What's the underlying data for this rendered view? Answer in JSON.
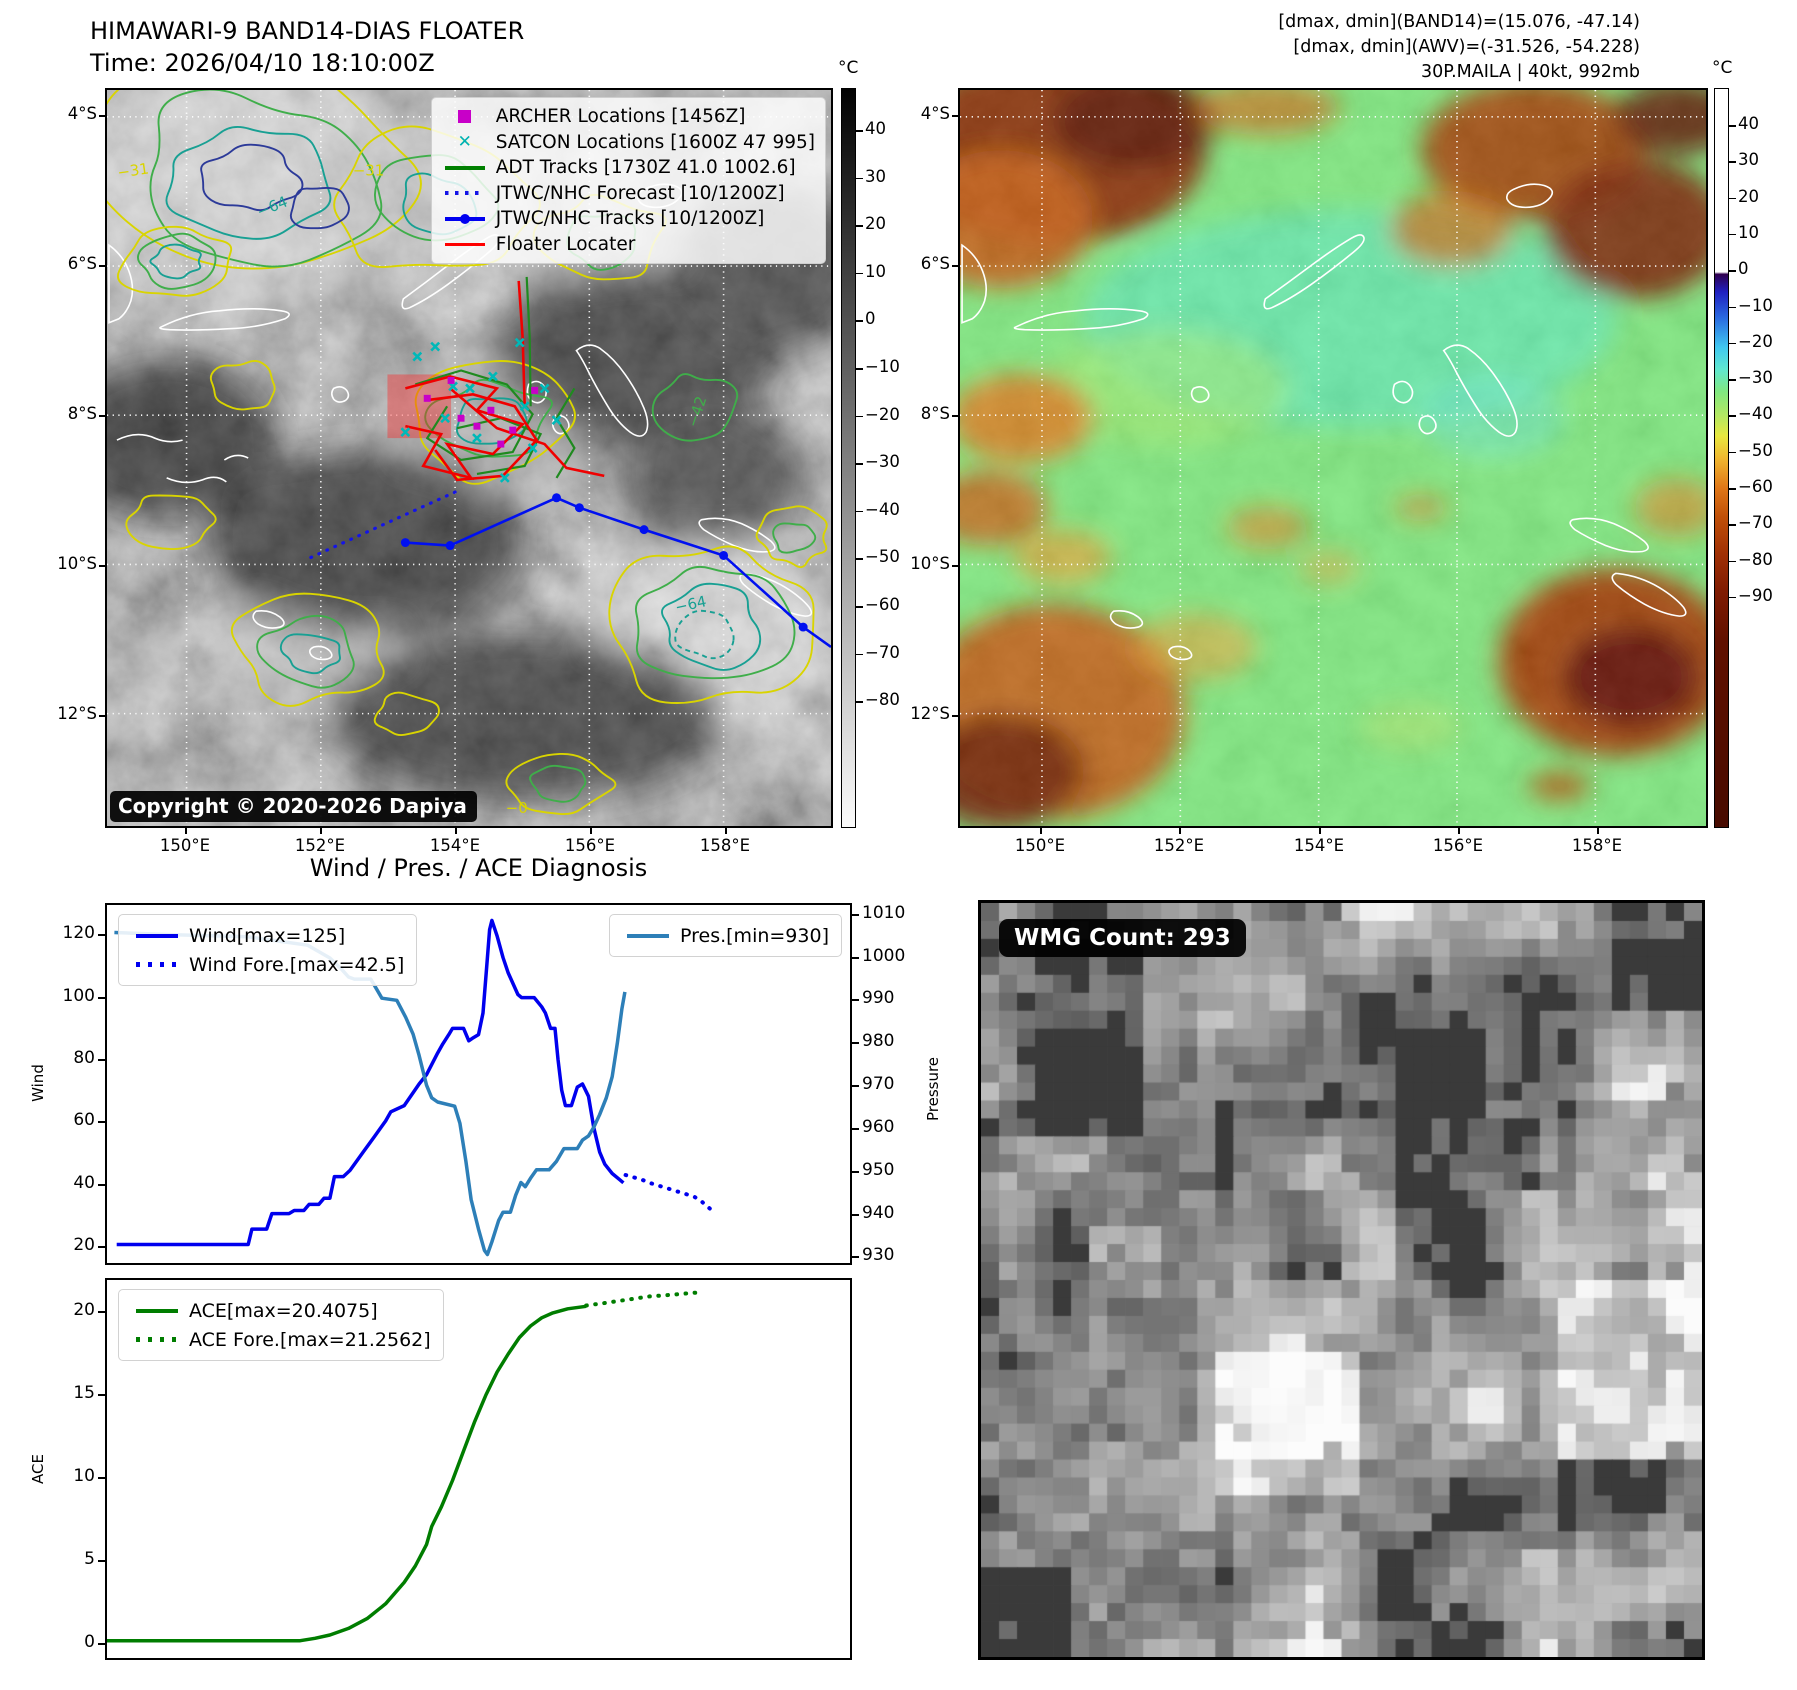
{
  "band14": {
    "title": "HIMAWARI-9 BAND14-DIAS FLOATER",
    "subtitle": "Time: 2026/04/10 18:10:00Z",
    "copyright": "Copyright © 2020-2026 Dapiya",
    "legend": [
      {
        "label": "ARCHER Locations [1456Z]",
        "color": "#c800c8",
        "marker": "square"
      },
      {
        "label": "SATCON Locations [1600Z 47 995]",
        "color": "#00b2b2",
        "marker": "x"
      },
      {
        "label": "ADT Tracks [1730Z 41.0 1002.6]",
        "color": "#008000",
        "marker": "line"
      },
      {
        "label": "JTWC/NHC Forecast [10/1200Z]",
        "color": "#1414e6",
        "marker": "dotted"
      },
      {
        "label": "JTWC/NHC Tracks [10/1200Z]",
        "color": "#0000f0",
        "marker": "line-marker"
      },
      {
        "label": "Floater Locater",
        "color": "#ff0000",
        "marker": "line"
      }
    ],
    "lat_ticks": [
      "4°S",
      "6°S",
      "8°S",
      "10°S",
      "12°S"
    ],
    "lon_ticks": [
      "150°E",
      "152°E",
      "154°E",
      "156°E",
      "158°E"
    ],
    "contour_labels": [
      "−31",
      "−64",
      "−42",
      "−64",
      "−31",
      "−0"
    ],
    "colorbar": {
      "unit": "°C",
      "ticks": [
        "40",
        "30",
        "20",
        "10",
        "0",
        "−10",
        "−20",
        "−30",
        "−40",
        "−50",
        "−60",
        "−70",
        "−80"
      ]
    }
  },
  "awv": {
    "header_lines": [
      "[dmax, dmin](BAND14)=(15.076, -47.14)",
      "[dmax, dmin](AWV)=(-31.526, -54.228)",
      "30P.MAILA | 40kt, 992mb"
    ],
    "lat_ticks": [
      "4°S",
      "6°S",
      "8°S",
      "10°S",
      "12°S"
    ],
    "lon_ticks": [
      "150°E",
      "152°E",
      "154°E",
      "156°E",
      "158°E"
    ],
    "colorbar": {
      "unit": "°C",
      "ticks": [
        "40",
        "30",
        "20",
        "10",
        "0",
        "−10",
        "−20",
        "−30",
        "−40",
        "−50",
        "−60",
        "−70",
        "−80",
        "−90"
      ]
    }
  },
  "diagnosis": {
    "title": "Wind / Pres. / ACE Diagnosis",
    "wind_axis_label": "Wind",
    "pres_axis_label": "Pressure",
    "ace_axis_label": "ACE",
    "legend_wind": "Wind[max=125]",
    "legend_wind_fore": "Wind Fore.[max=42.5]",
    "legend_pres": "Pres.[min=930]",
    "legend_ace": "ACE[max=20.4075]",
    "legend_ace_fore": "ACE Fore.[max=21.2562]",
    "wind_ticks": [
      "120",
      "100",
      "80",
      "60",
      "40",
      "20"
    ],
    "pres_ticks": [
      "1010",
      "1000",
      "990",
      "980",
      "970",
      "960",
      "950",
      "940",
      "930"
    ],
    "ace_ticks": [
      "20",
      "15",
      "10",
      "5",
      "0"
    ]
  },
  "wmg": {
    "label": "WMG Count: 293"
  },
  "chart_data": [
    {
      "type": "line",
      "title": "Wind / Pres. / ACE Diagnosis — upper panel (wind & pressure vs time)",
      "ylabel": "Wind",
      "y2label": "Pressure",
      "ylim": [
        14,
        130
      ],
      "y2lim": [
        928,
        1012.5
      ],
      "grid": false,
      "legend_position": "upper-left and upper-right",
      "series": [
        {
          "name": "Wind[max=125]",
          "axis": "left",
          "style": "solid",
          "color": "#0000ee",
          "points": [
            [
              0.013,
              20
            ],
            [
              0.19,
              20
            ],
            [
              0.195,
              25
            ],
            [
              0.215,
              25
            ],
            [
              0.222,
              30
            ],
            [
              0.245,
              30
            ],
            [
              0.252,
              31
            ],
            [
              0.265,
              31
            ],
            [
              0.272,
              33
            ],
            [
              0.285,
              33
            ],
            [
              0.292,
              35
            ],
            [
              0.3,
              35
            ],
            [
              0.306,
              42
            ],
            [
              0.318,
              42
            ],
            [
              0.327,
              44
            ],
            [
              0.345,
              50
            ],
            [
              0.36,
              55
            ],
            [
              0.375,
              60
            ],
            [
              0.382,
              63
            ],
            [
              0.4,
              65
            ],
            [
              0.42,
              72
            ],
            [
              0.43,
              75
            ],
            [
              0.445,
              82
            ],
            [
              0.452,
              85
            ],
            [
              0.46,
              88
            ],
            [
              0.465,
              90
            ],
            [
              0.48,
              90
            ],
            [
              0.487,
              86
            ],
            [
              0.493,
              87
            ],
            [
              0.5,
              88
            ],
            [
              0.506,
              95
            ],
            [
              0.511,
              110
            ],
            [
              0.515,
              122
            ],
            [
              0.518,
              125
            ],
            [
              0.525,
              120
            ],
            [
              0.533,
              113
            ],
            [
              0.54,
              108
            ],
            [
              0.553,
              101
            ],
            [
              0.558,
              100
            ],
            [
              0.575,
              100
            ],
            [
              0.585,
              97
            ],
            [
              0.59,
              95
            ],
            [
              0.597,
              90
            ],
            [
              0.603,
              90
            ],
            [
              0.607,
              80
            ],
            [
              0.612,
              70
            ],
            [
              0.617,
              65
            ],
            [
              0.625,
              65
            ],
            [
              0.633,
              71
            ],
            [
              0.64,
              72
            ],
            [
              0.648,
              68
            ],
            [
              0.655,
              58
            ],
            [
              0.663,
              50
            ],
            [
              0.67,
              46
            ],
            [
              0.68,
              43
            ],
            [
              0.69,
              41
            ],
            [
              0.695,
              40
            ]
          ]
        },
        {
          "name": "Wind Fore.[max=42.5]",
          "axis": "left",
          "style": "dotted",
          "color": "#0000ee",
          "points": [
            [
              0.698,
              42.5
            ],
            [
              0.72,
              41
            ],
            [
              0.73,
              40
            ],
            [
              0.75,
              38.5
            ],
            [
              0.77,
              37
            ],
            [
              0.79,
              35.5
            ],
            [
              0.8,
              34
            ],
            [
              0.812,
              31.5
            ]
          ]
        },
        {
          "name": "Pres.[min=930]",
          "axis": "right",
          "style": "solid",
          "color": "#2d7fb8",
          "points": [
            [
              0.01,
              1006
            ],
            [
              0.09,
              1005.5
            ],
            [
              0.19,
              1005
            ],
            [
              0.23,
              1004
            ],
            [
              0.27,
              1003
            ],
            [
              0.285,
              1001.5
            ],
            [
              0.3,
              1000
            ],
            [
              0.315,
              997.5
            ],
            [
              0.325,
              995.5
            ],
            [
              0.333,
              995
            ],
            [
              0.355,
              995
            ],
            [
              0.37,
              990.5
            ],
            [
              0.39,
              990
            ],
            [
              0.402,
              986
            ],
            [
              0.412,
              982
            ],
            [
              0.42,
              977
            ],
            [
              0.43,
              970
            ],
            [
              0.437,
              967
            ],
            [
              0.445,
              966
            ],
            [
              0.468,
              965
            ],
            [
              0.475,
              961
            ],
            [
              0.483,
              952
            ],
            [
              0.49,
              943
            ],
            [
              0.5,
              936
            ],
            [
              0.508,
              931
            ],
            [
              0.512,
              930
            ],
            [
              0.518,
              933
            ],
            [
              0.527,
              938
            ],
            [
              0.533,
              940
            ],
            [
              0.543,
              940
            ],
            [
              0.55,
              944
            ],
            [
              0.557,
              947
            ],
            [
              0.563,
              946
            ],
            [
              0.57,
              948
            ],
            [
              0.578,
              950
            ],
            [
              0.595,
              950
            ],
            [
              0.605,
              952
            ],
            [
              0.615,
              955
            ],
            [
              0.633,
              955
            ],
            [
              0.64,
              957
            ],
            [
              0.648,
              958
            ],
            [
              0.655,
              960
            ],
            [
              0.663,
              963
            ],
            [
              0.672,
              967
            ],
            [
              0.68,
              972
            ],
            [
              0.687,
              980
            ],
            [
              0.693,
              988
            ],
            [
              0.697,
              992
            ]
          ]
        }
      ]
    },
    {
      "type": "line",
      "title": "Wind / Pres. / ACE Diagnosis — lower panel (accumulated cyclone energy vs time)",
      "ylabel": "ACE",
      "ylim": [
        -1,
        22
      ],
      "grid": false,
      "legend_position": "upper-left",
      "series": [
        {
          "name": "ACE[max=20.4075]",
          "axis": "left",
          "style": "solid",
          "color": "#007d00",
          "points": [
            [
              0.0,
              0.05
            ],
            [
              0.26,
              0.05
            ],
            [
              0.28,
              0.2
            ],
            [
              0.3,
              0.4
            ],
            [
              0.325,
              0.8
            ],
            [
              0.35,
              1.4
            ],
            [
              0.375,
              2.3
            ],
            [
              0.4,
              3.6
            ],
            [
              0.415,
              4.6
            ],
            [
              0.43,
              5.9
            ],
            [
              0.437,
              7.0
            ],
            [
              0.45,
              8.2
            ],
            [
              0.465,
              9.8
            ],
            [
              0.48,
              11.6
            ],
            [
              0.495,
              13.4
            ],
            [
              0.51,
              15.0
            ],
            [
              0.525,
              16.4
            ],
            [
              0.54,
              17.5
            ],
            [
              0.555,
              18.5
            ],
            [
              0.57,
              19.2
            ],
            [
              0.585,
              19.7
            ],
            [
              0.6,
              20.0
            ],
            [
              0.62,
              20.25
            ],
            [
              0.645,
              20.4
            ]
          ]
        },
        {
          "name": "ACE Fore.[max=21.2562]",
          "axis": "left",
          "style": "dotted",
          "color": "#007d00",
          "points": [
            [
              0.645,
              20.45
            ],
            [
              0.67,
              20.6
            ],
            [
              0.7,
              20.8
            ],
            [
              0.73,
              21.0
            ],
            [
              0.76,
              21.1
            ],
            [
              0.785,
              21.2
            ],
            [
              0.8,
              21.26
            ]
          ]
        }
      ]
    },
    {
      "type": "heatmap",
      "title": "HIMAWARI-9 BAND14 IR brightness temperature (grayscale) with contour overlays and storm-track cluster",
      "x_ticks": [
        "150°E",
        "152°E",
        "154°E",
        "156°E",
        "158°E"
      ],
      "y_ticks": [
        "4°S",
        "6°S",
        "8°S",
        "10°S",
        "12°S"
      ],
      "colorbar_unit": "°C",
      "colorbar_ticks": [
        40,
        30,
        20,
        10,
        0,
        -10,
        -20,
        -30,
        -40,
        -50,
        -60,
        -70,
        -80
      ]
    },
    {
      "type": "heatmap",
      "title": "AWV water-vapor product (color) for 30P.MAILA",
      "x_ticks": [
        "150°E",
        "152°E",
        "154°E",
        "156°E",
        "158°E"
      ],
      "y_ticks": [
        "4°S",
        "6°S",
        "8°S",
        "10°S",
        "12°S"
      ],
      "colorbar_unit": "°C",
      "colorbar_ticks": [
        40,
        30,
        20,
        10,
        0,
        -10,
        -20,
        -30,
        -40,
        -50,
        -60,
        -70,
        -80,
        -90
      ]
    }
  ]
}
